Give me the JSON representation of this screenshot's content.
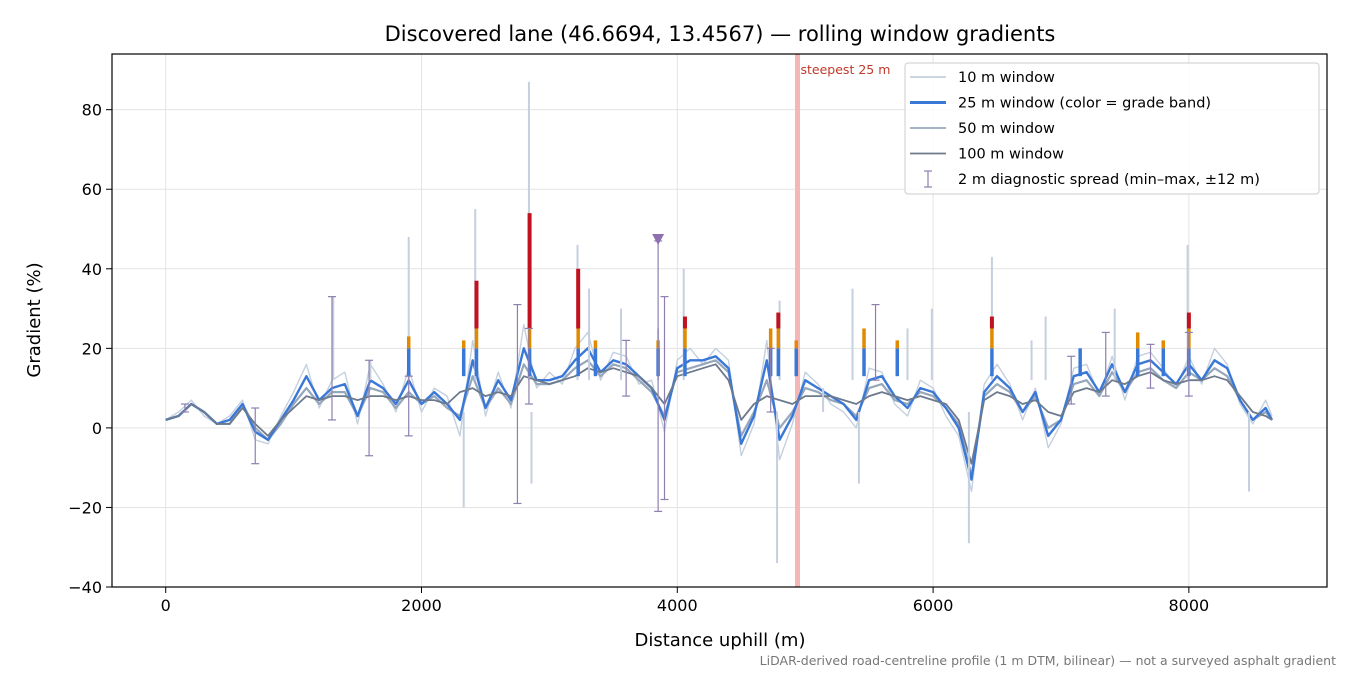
{
  "chart_data": {
    "type": "line",
    "title": "Discovered lane (46.6694, 13.4567) — rolling window gradients",
    "xlabel": "Distance uphill (m)",
    "ylabel": "Gradient (%)",
    "footnote": "LiDAR-derived road-centreline profile (1 m DTM, bilinear) — not a surveyed asphalt gradient",
    "xlim": [
      -420,
      9080
    ],
    "ylim": [
      -40,
      94
    ],
    "x_ticks": [
      0,
      2000,
      4000,
      6000,
      8000
    ],
    "x_tick_labels": [
      "0",
      "2000",
      "4000",
      "6000",
      "8000"
    ],
    "y_ticks": [
      -40,
      -20,
      0,
      20,
      40,
      60,
      80
    ],
    "y_tick_labels": [
      "−40",
      "−20",
      "0",
      "20",
      "40",
      "60",
      "80"
    ],
    "grid": true,
    "legend_position": "top-right",
    "colors": {
      "w10": "#c5d0de",
      "w25": "#3a78d8",
      "w25_orange": "#e08a00",
      "w25_red": "#c1121f",
      "w50": "#97a7bb",
      "w100": "#6c7a8c",
      "spread": "#8e7fb0",
      "steepest_line": "#f4b6b6",
      "marker": "#8e6fb0"
    },
    "annotation": {
      "text": "steepest 25 m",
      "x": 4940
    },
    "marker": {
      "x": 3850,
      "y": 47.5
    },
    "series": [
      {
        "name": "100 m window",
        "x": [
          0,
          100,
          200,
          300,
          400,
          500,
          600,
          700,
          800,
          900,
          1000,
          1100,
          1200,
          1300,
          1400,
          1500,
          1600,
          1700,
          1800,
          1900,
          2000,
          2100,
          2200,
          2300,
          2400,
          2500,
          2600,
          2700,
          2800,
          2900,
          3000,
          3100,
          3200,
          3300,
          3400,
          3500,
          3600,
          3700,
          3800,
          3900,
          4000,
          4100,
          4200,
          4300,
          4400,
          4500,
          4600,
          4700,
          4800,
          4900,
          5000,
          5100,
          5200,
          5300,
          5400,
          5500,
          5600,
          5700,
          5800,
          5900,
          6000,
          6100,
          6200,
          6300,
          6400,
          6500,
          6600,
          6700,
          6800,
          6900,
          7000,
          7100,
          7200,
          7300,
          7400,
          7500,
          7600,
          7700,
          7800,
          7900,
          8000,
          8100,
          8200,
          8300,
          8400,
          8500,
          8600,
          8650
        ],
        "values": [
          2,
          3,
          6,
          4,
          1,
          1,
          5,
          1,
          -2,
          2,
          5,
          8,
          7,
          8,
          8,
          7,
          8,
          8,
          7,
          8,
          7,
          7,
          6,
          9,
          10,
          8,
          9,
          8,
          13,
          12,
          11,
          12,
          13,
          15,
          14,
          15,
          14,
          13,
          10,
          6,
          13,
          14,
          15,
          16,
          12,
          2,
          6,
          8,
          7,
          6,
          8,
          8,
          8,
          7,
          6,
          8,
          9,
          8,
          7,
          8,
          7,
          6,
          2,
          -9,
          7,
          9,
          8,
          6,
          7,
          4,
          3,
          9,
          10,
          9,
          12,
          11,
          13,
          14,
          12,
          11,
          12,
          12,
          13,
          12,
          8,
          4,
          3,
          2
        ]
      },
      {
        "name": "50 m window",
        "x": [
          0,
          100,
          200,
          300,
          400,
          500,
          600,
          700,
          800,
          900,
          1000,
          1100,
          1200,
          1300,
          1400,
          1500,
          1600,
          1700,
          1800,
          1900,
          2000,
          2100,
          2200,
          2300,
          2400,
          2500,
          2600,
          2700,
          2800,
          2900,
          3000,
          3100,
          3200,
          3300,
          3400,
          3500,
          3600,
          3700,
          3800,
          3900,
          4000,
          4100,
          4200,
          4300,
          4400,
          4500,
          4600,
          4700,
          4800,
          4900,
          5000,
          5100,
          5200,
          5300,
          5400,
          5500,
          5600,
          5700,
          5800,
          5900,
          6000,
          6100,
          6200,
          6300,
          6400,
          6500,
          6600,
          6700,
          6800,
          6900,
          7000,
          7100,
          7200,
          7300,
          7400,
          7500,
          7600,
          7700,
          7800,
          7900,
          8000,
          8100,
          8200,
          8300,
          8400,
          8500,
          8600,
          8650
        ],
        "values": [
          2,
          3,
          6,
          4,
          1,
          1,
          6,
          0,
          -3,
          1,
          6,
          10,
          6,
          9,
          9,
          3,
          10,
          9,
          5,
          9,
          6,
          8,
          5,
          3,
          13,
          5,
          10,
          6,
          16,
          11,
          11,
          12,
          15,
          17,
          13,
          16,
          15,
          12,
          9,
          3,
          14,
          15,
          16,
          17,
          14,
          -2,
          4,
          12,
          0,
          4,
          10,
          9,
          7,
          6,
          3,
          10,
          11,
          7,
          6,
          9,
          8,
          5,
          1,
          -12,
          8,
          11,
          9,
          4,
          8,
          0,
          2,
          11,
          12,
          8,
          14,
          9,
          14,
          15,
          12,
          10,
          14,
          12,
          15,
          13,
          7,
          2,
          4,
          2
        ]
      },
      {
        "name": "25 m window (color = grade band)",
        "x": [
          0,
          100,
          200,
          300,
          400,
          500,
          600,
          700,
          800,
          900,
          1000,
          1100,
          1200,
          1300,
          1400,
          1500,
          1600,
          1700,
          1800,
          1900,
          2000,
          2100,
          2200,
          2300,
          2400,
          2500,
          2600,
          2700,
          2800,
          2900,
          3000,
          3100,
          3200,
          3300,
          3400,
          3500,
          3600,
          3700,
          3800,
          3900,
          4000,
          4100,
          4200,
          4300,
          4400,
          4500,
          4600,
          4700,
          4800,
          4900,
          5000,
          5100,
          5200,
          5300,
          5400,
          5500,
          5600,
          5700,
          5800,
          5900,
          6000,
          6100,
          6200,
          6300,
          6400,
          6500,
          6600,
          6700,
          6800,
          6900,
          7000,
          7100,
          7200,
          7300,
          7400,
          7500,
          7600,
          7700,
          7800,
          7900,
          8000,
          8100,
          8200,
          8300,
          8400,
          8500,
          8600,
          8650
        ],
        "values": [
          2,
          3,
          6,
          4,
          1,
          2,
          6,
          -1,
          -3,
          2,
          7,
          13,
          7,
          10,
          11,
          3,
          12,
          10,
          6,
          12,
          6,
          9,
          6,
          2,
          17,
          5,
          12,
          7,
          20,
          12,
          12,
          13,
          17,
          20,
          14,
          17,
          16,
          13,
          10,
          2,
          15,
          17,
          17,
          18,
          15,
          -4,
          3,
          17,
          -3,
          3,
          12,
          10,
          8,
          6,
          2,
          12,
          13,
          8,
          5,
          10,
          9,
          5,
          0,
          -13,
          9,
          13,
          10,
          4,
          9,
          -2,
          2,
          13,
          14,
          9,
          16,
          9,
          16,
          17,
          14,
          11,
          16,
          12,
          17,
          15,
          7,
          2,
          5,
          2
        ]
      },
      {
        "name": "10 m window",
        "x": [
          0,
          100,
          200,
          300,
          400,
          500,
          600,
          700,
          800,
          900,
          1000,
          1100,
          1200,
          1300,
          1400,
          1500,
          1600,
          1700,
          1800,
          1900,
          2000,
          2100,
          2200,
          2300,
          2400,
          2500,
          2600,
          2700,
          2800,
          2900,
          3000,
          3100,
          3200,
          3300,
          3400,
          3500,
          3600,
          3700,
          3800,
          3900,
          4000,
          4100,
          4200,
          4300,
          4400,
          4500,
          4600,
          4700,
          4800,
          4900,
          5000,
          5100,
          5200,
          5300,
          5400,
          5500,
          5600,
          5700,
          5800,
          5900,
          6000,
          6100,
          6200,
          6300,
          6400,
          6500,
          6600,
          6700,
          6800,
          6900,
          7000,
          7100,
          7200,
          7300,
          7400,
          7500,
          7600,
          7700,
          7800,
          7900,
          8000,
          8100,
          8200,
          8300,
          8400,
          8500,
          8600,
          8650
        ],
        "values": [
          2,
          4,
          7,
          3,
          1,
          3,
          7,
          -3,
          -4,
          3,
          9,
          16,
          5,
          12,
          14,
          1,
          16,
          11,
          4,
          15,
          4,
          10,
          8,
          -2,
          22,
          3,
          14,
          5,
          26,
          10,
          14,
          11,
          20,
          24,
          12,
          19,
          18,
          11,
          12,
          -1,
          17,
          20,
          16,
          20,
          17,
          -7,
          1,
          22,
          -8,
          1,
          14,
          11,
          6,
          4,
          0,
          15,
          14,
          6,
          3,
          12,
          10,
          3,
          -2,
          -16,
          11,
          16,
          11,
          2,
          10,
          -5,
          1,
          15,
          16,
          8,
          18,
          7,
          18,
          19,
          15,
          10,
          18,
          11,
          20,
          16,
          6,
          1,
          7,
          3
        ]
      }
    ],
    "spikes_10m": [
      {
        "x": 1310,
        "y": 33
      },
      {
        "x": 1600,
        "y": 17
      },
      {
        "x": 1900,
        "y": 48
      },
      {
        "x": 2330,
        "y": -20
      },
      {
        "x": 2420,
        "y": 55
      },
      {
        "x": 2840,
        "y": 87
      },
      {
        "x": 2860,
        "y": -14
      },
      {
        "x": 3220,
        "y": 46
      },
      {
        "x": 3310,
        "y": 35
      },
      {
        "x": 3560,
        "y": 30
      },
      {
        "x": 3850,
        "y": 25
      },
      {
        "x": 4050,
        "y": 40
      },
      {
        "x": 4780,
        "y": -34
      },
      {
        "x": 4800,
        "y": 32
      },
      {
        "x": 5140,
        "y": 10
      },
      {
        "x": 5370,
        "y": 35
      },
      {
        "x": 5420,
        "y": -14
      },
      {
        "x": 5800,
        "y": 25
      },
      {
        "x": 5990,
        "y": 30
      },
      {
        "x": 6280,
        "y": -29
      },
      {
        "x": 6460,
        "y": 43
      },
      {
        "x": 6770,
        "y": 22
      },
      {
        "x": 6880,
        "y": 28
      },
      {
        "x": 7420,
        "y": 30
      },
      {
        "x": 7990,
        "y": 46
      },
      {
        "x": 8470,
        "y": -16
      }
    ],
    "peaks_25m": [
      {
        "x": 1900,
        "y": 23
      },
      {
        "x": 2330,
        "y": 22
      },
      {
        "x": 2430,
        "y": 37
      },
      {
        "x": 2845,
        "y": 54
      },
      {
        "x": 3225,
        "y": 40
      },
      {
        "x": 3360,
        "y": 22
      },
      {
        "x": 3850,
        "y": 22
      },
      {
        "x": 4060,
        "y": 28
      },
      {
        "x": 4730,
        "y": 25
      },
      {
        "x": 4790,
        "y": 29
      },
      {
        "x": 4930,
        "y": 22
      },
      {
        "x": 5460,
        "y": 25
      },
      {
        "x": 5720,
        "y": 22
      },
      {
        "x": 6460,
        "y": 28
      },
      {
        "x": 7150,
        "y": 20
      },
      {
        "x": 7600,
        "y": 24
      },
      {
        "x": 7800,
        "y": 22
      },
      {
        "x": 8000,
        "y": 29
      }
    ],
    "spread_2m": [
      {
        "x": 150,
        "lo": 4,
        "hi": 6
      },
      {
        "x": 700,
        "lo": -9,
        "hi": 5
      },
      {
        "x": 1300,
        "lo": 2,
        "hi": 33
      },
      {
        "x": 1590,
        "lo": -7,
        "hi": 17
      },
      {
        "x": 1900,
        "lo": -2,
        "hi": 13
      },
      {
        "x": 2750,
        "lo": -19,
        "hi": 31
      },
      {
        "x": 2840,
        "lo": 6,
        "hi": 25
      },
      {
        "x": 3600,
        "lo": 8,
        "hi": 22
      },
      {
        "x": 3850,
        "lo": -21,
        "hi": 47
      },
      {
        "x": 3900,
        "lo": -18,
        "hi": 33
      },
      {
        "x": 4730,
        "lo": 4,
        "hi": 20
      },
      {
        "x": 5550,
        "lo": 12,
        "hi": 31
      },
      {
        "x": 7080,
        "lo": 6,
        "hi": 18
      },
      {
        "x": 7350,
        "lo": 8,
        "hi": 24
      },
      {
        "x": 7700,
        "lo": 10,
        "hi": 21
      },
      {
        "x": 8000,
        "lo": 8,
        "hi": 24
      }
    ],
    "legend": [
      {
        "key": "w10",
        "label": "10 m window",
        "kind": "line"
      },
      {
        "key": "w25",
        "label": "25 m window (color = grade band)",
        "kind": "line-thick"
      },
      {
        "key": "w50",
        "label": "50 m window",
        "kind": "line"
      },
      {
        "key": "w100",
        "label": "100 m window",
        "kind": "line"
      },
      {
        "key": "spread",
        "label": "2 m diagnostic spread (min–max, ±12 m)",
        "kind": "errorbar"
      }
    ]
  }
}
